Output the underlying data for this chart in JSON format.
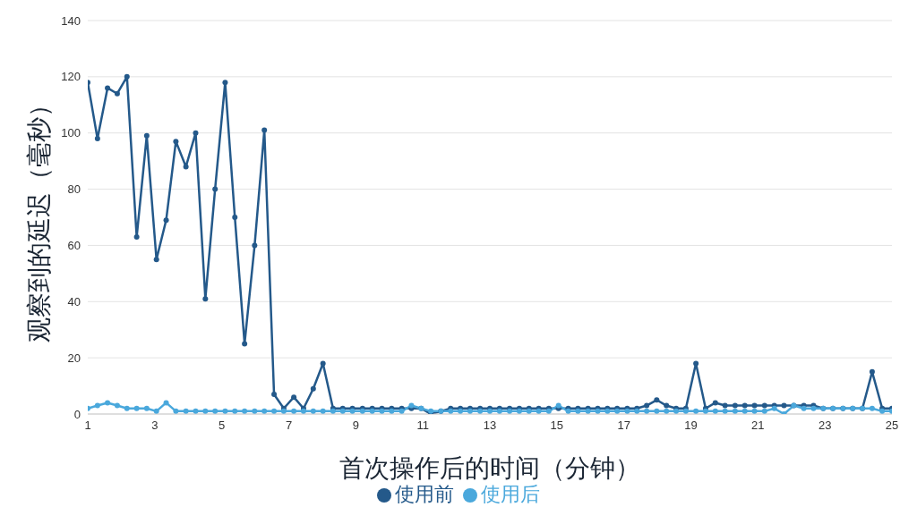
{
  "chart_data": {
    "type": "line",
    "xlabel": "首次操作后的时间（分钟）",
    "ylabel": "观察到的延迟（毫秒）",
    "x": [
      1,
      1.29,
      1.59,
      1.88,
      2.17,
      2.46,
      2.76,
      3.05,
      3.34,
      3.63,
      3.93,
      4.22,
      4.51,
      4.8,
      5.1,
      5.39,
      5.68,
      5.98,
      6.27,
      6.56,
      6.85,
      7.15,
      7.44,
      7.73,
      8.02,
      8.32,
      8.61,
      8.9,
      9.2,
      9.49,
      9.78,
      10.07,
      10.37,
      10.66,
      10.95,
      11.24,
      11.54,
      11.83,
      12.12,
      12.41,
      12.71,
      13,
      13.29,
      13.59,
      13.88,
      14.17,
      14.46,
      14.76,
      15.05,
      15.34,
      15.63,
      15.93,
      16.22,
      16.51,
      16.8,
      17.1,
      17.39,
      17.68,
      17.98,
      18.27,
      18.56,
      18.85,
      19.15,
      19.44,
      19.73,
      20.02,
      20.32,
      20.61,
      20.9,
      21.2,
      21.49,
      21.78,
      22.07,
      22.37,
      22.66,
      22.95,
      23.24,
      23.54,
      23.83,
      24.12,
      24.41,
      24.71,
      25
    ],
    "series": [
      {
        "name": "使用前",
        "color": "#24598a",
        "values": [
          118,
          98,
          116,
          114,
          120,
          63,
          99,
          55,
          69,
          97,
          88,
          100,
          41,
          80,
          118,
          70,
          25,
          60,
          101,
          7,
          2,
          6,
          2,
          9,
          18,
          2,
          2,
          2,
          2,
          2,
          2,
          2,
          2,
          2,
          2,
          0,
          1,
          2,
          2,
          2,
          2,
          2,
          2,
          2,
          2,
          2,
          2,
          2,
          2,
          2,
          2,
          2,
          2,
          2,
          2,
          2,
          2,
          3,
          5,
          3,
          2,
          2,
          18,
          2,
          4,
          3,
          3,
          3,
          3,
          3,
          3,
          3,
          3,
          3,
          3,
          2,
          2,
          2,
          2,
          2,
          15,
          2,
          2
        ]
      },
      {
        "name": "使用后",
        "color": "#4aa8dc",
        "values": [
          2,
          3,
          4,
          3,
          2,
          2,
          2,
          1,
          4,
          1,
          1,
          1,
          1,
          1,
          1,
          1,
          1,
          1,
          1,
          1,
          1,
          1,
          1,
          1,
          1,
          1,
          1,
          1,
          1,
          1,
          1,
          1,
          1,
          3,
          2,
          1,
          1,
          1,
          1,
          1,
          1,
          1,
          1,
          1,
          1,
          1,
          1,
          1,
          3,
          1,
          1,
          1,
          1,
          1,
          1,
          1,
          1,
          1,
          1,
          1,
          1,
          1,
          1,
          1,
          1,
          1,
          1,
          1,
          1,
          1,
          2,
          0,
          3,
          2,
          2,
          2,
          2,
          2,
          2,
          2,
          2,
          1,
          1
        ]
      }
    ],
    "xlim": [
      1,
      25
    ],
    "xticks": [
      1,
      3,
      5,
      7,
      9,
      11,
      13,
      15,
      17,
      19,
      21,
      23,
      25
    ],
    "ylim": [
      0,
      140
    ],
    "yticks": [
      0,
      20,
      40,
      60,
      80,
      100,
      120,
      140
    ],
    "grid": "y",
    "legend": "bottom",
    "marker": "circle",
    "line_style": "solid"
  }
}
